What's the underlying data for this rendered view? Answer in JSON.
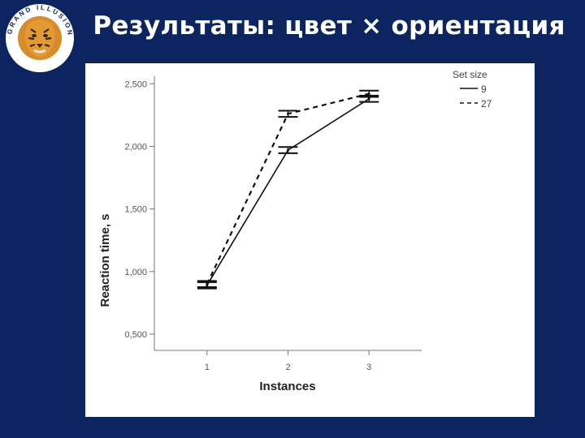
{
  "slide": {
    "title": "Результаты: цвет × ориентация"
  },
  "logo": {
    "icon": "tiger-head-icon",
    "ring_text": "GRAND ILLUSION",
    "ring_color": "#ffffff",
    "text_color": "#0c2560"
  },
  "colors": {
    "background": "#0c2560",
    "panel": "#ffffff",
    "line": "#111111"
  },
  "chart_data": {
    "type": "line",
    "xlabel": "Instances",
    "ylabel": "Reaction time, s",
    "x": [
      1,
      2,
      3
    ],
    "x_tick_labels": [
      "1",
      "2",
      "3"
    ],
    "y_tick_values": [
      500,
      1000,
      1500,
      2000,
      2500
    ],
    "y_tick_labels": [
      "0,500",
      "1,000",
      "1,500",
      "2,000",
      "2,500"
    ],
    "xlim": [
      0.35,
      3.65
    ],
    "ylim": [
      370,
      2560
    ],
    "legend_title": "Set size",
    "legend_position": "top-right",
    "grid": false,
    "error_bars": true,
    "series": [
      {
        "name": "9",
        "style": "solid",
        "values": [
          890,
          1970,
          2380
        ],
        "err": [
          25,
          25,
          25
        ]
      },
      {
        "name": "27",
        "style": "dashed",
        "values": [
          900,
          2260,
          2420
        ],
        "err": [
          25,
          25,
          25
        ]
      }
    ]
  }
}
